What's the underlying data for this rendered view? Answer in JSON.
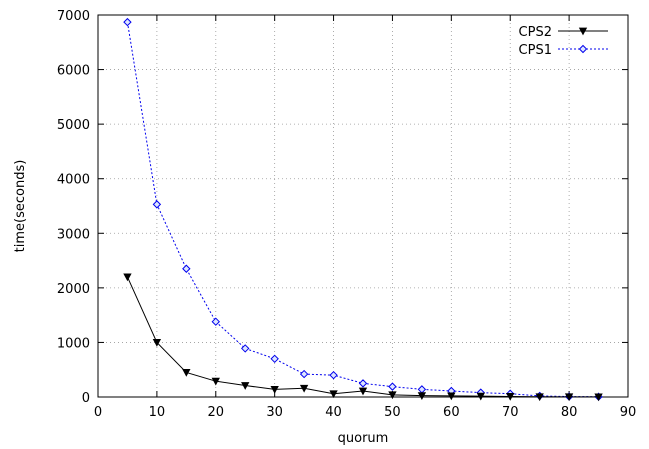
{
  "chart_data": {
    "type": "line",
    "title": "",
    "xlabel": "quorum",
    "ylabel": "time(seconds)",
    "xlim": [
      0,
      90
    ],
    "ylim": [
      0,
      7000
    ],
    "xticks": [
      0,
      10,
      20,
      30,
      40,
      50,
      60,
      70,
      80,
      90
    ],
    "yticks": [
      0,
      1000,
      2000,
      3000,
      4000,
      5000,
      6000,
      7000
    ],
    "grid": true,
    "legend": "top-right",
    "series": [
      {
        "name": "CPS2",
        "color": "#000000",
        "line_style": "solid",
        "marker": "triangle-down",
        "x": [
          5,
          10,
          15,
          20,
          25,
          30,
          35,
          40,
          45,
          50,
          55,
          60,
          65,
          70,
          75,
          80,
          85
        ],
        "y": [
          2200,
          1000,
          450,
          290,
          210,
          140,
          160,
          60,
          110,
          40,
          25,
          20,
          15,
          10,
          5,
          3,
          2
        ]
      },
      {
        "name": "CPS1",
        "color": "#0000ee",
        "line_style": "dotted",
        "marker": "diamond",
        "x": [
          5,
          10,
          15,
          20,
          25,
          30,
          35,
          40,
          45,
          50,
          55,
          60,
          65,
          70,
          75,
          80,
          85
        ],
        "y": [
          6870,
          3530,
          2350,
          1380,
          890,
          700,
          420,
          400,
          250,
          190,
          140,
          110,
          80,
          60,
          20,
          8,
          5
        ]
      }
    ]
  }
}
